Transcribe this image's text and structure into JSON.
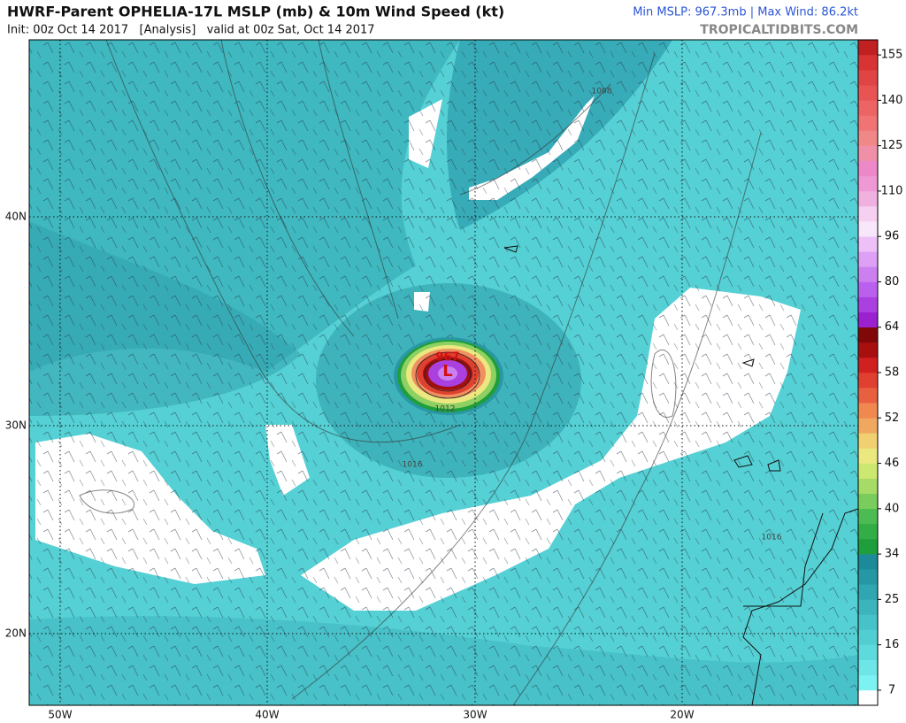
{
  "header": {
    "title": "HWRF-Parent OPHELIA-17L MSLP (mb) & 10m Wind Speed (kt)",
    "init": "Init: 00z Oct 14 2017   [Analysis]   valid at 00z Sat, Oct 14 2017",
    "stats": "Min MSLP: 967.3mb | Max Wind: 86.2kt",
    "site": "TROPICALTIDBITS.COM"
  },
  "map": {
    "lat_labels": [
      "40N",
      "30N",
      "20N"
    ],
    "lon_labels": [
      "50W",
      "40W",
      "30W",
      "20W"
    ],
    "contour_labels": [
      "1008",
      "1016",
      "1016",
      "1012"
    ],
    "center_pressure": "967",
    "low_symbol": "L"
  },
  "colorbar": {
    "labels": [
      7,
      16,
      25,
      34,
      40,
      46,
      52,
      58,
      64,
      80,
      96,
      110,
      125,
      140,
      155
    ],
    "colors": [
      "#ffffff",
      "#7df2f2",
      "#6ee6e8",
      "#5fdadc",
      "#52ced2",
      "#46c2c8",
      "#3bb4bc",
      "#30a6b0",
      "#2698a4",
      "#1c8a98",
      "#1e9e3c",
      "#33ad46",
      "#4cbb52",
      "#7acc5c",
      "#a6dc66",
      "#cce870",
      "#ece880",
      "#f0d070",
      "#f0a860",
      "#f08850",
      "#e86040",
      "#e04030",
      "#d02020",
      "#a81010",
      "#800808",
      "#9a20d0",
      "#aa40e0",
      "#bb60ee",
      "#cc80f0",
      "#dda0f4",
      "#eec0f8",
      "#f8e6fa",
      "#f6d0f0",
      "#f0b0e0",
      "#ee98d4",
      "#ec88c8",
      "#f090a8",
      "#f08888",
      "#f07474",
      "#ec6464",
      "#e85454",
      "#e04444",
      "#d83434",
      "#c02020"
    ]
  }
}
